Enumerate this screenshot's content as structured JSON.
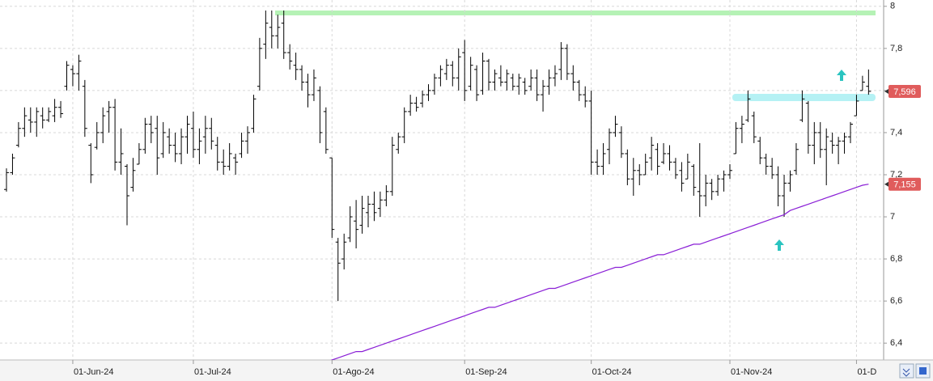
{
  "chart_data": {
    "type": "ohlc",
    "categories": [
      null,
      null,
      null,
      null,
      null,
      null,
      null,
      null,
      null,
      null,
      null,
      "01-Jun-24",
      null,
      null,
      null,
      null,
      null,
      null,
      null,
      null,
      null,
      null,
      null,
      null,
      null,
      null,
      null,
      null,
      null,
      null,
      null,
      "01-Jul-24",
      null,
      null,
      null,
      null,
      null,
      null,
      null,
      null,
      null,
      null,
      null,
      null,
      null,
      null,
      null,
      null,
      null,
      null,
      null,
      null,
      null,
      null,
      "01-Ago-24",
      null,
      null,
      null,
      null,
      null,
      null,
      null,
      null,
      null,
      null,
      null,
      null,
      null,
      null,
      null,
      null,
      null,
      null,
      null,
      null,
      null,
      "01-Sep-24",
      null,
      null,
      null,
      null,
      null,
      null,
      null,
      null,
      null,
      null,
      null,
      null,
      null,
      null,
      null,
      null,
      null,
      null,
      null,
      null,
      "01-Oct-24",
      null,
      null,
      null,
      null,
      null,
      null,
      null,
      null,
      null,
      null,
      null,
      null,
      null,
      null,
      null,
      null,
      null,
      null,
      null,
      null,
      null,
      null,
      "01-Nov-24",
      null,
      null,
      null,
      null,
      null,
      null,
      null,
      null,
      null,
      null,
      null,
      null,
      null,
      null,
      null,
      null,
      null,
      null,
      null,
      null,
      "01-D",
      null,
      null
    ],
    "open": [
      7.13,
      7.21,
      7.34,
      7.42,
      7.46,
      7.45,
      7.48,
      7.46,
      7.48,
      7.52,
      7.62,
      7.7,
      7.68,
      7.62,
      7.34,
      7.33,
      7.4,
      7.5,
      7.52,
      7.26,
      7.24,
      7.14,
      7.25,
      7.32,
      7.44,
      7.42,
      7.3,
      7.38,
      7.34,
      7.3,
      7.38,
      7.42,
      7.32,
      7.38,
      7.42,
      7.34,
      7.26,
      7.24,
      7.28,
      7.3,
      7.36,
      7.42,
      7.62,
      7.82,
      7.9,
      7.86,
      7.92,
      7.78,
      7.72,
      7.7,
      7.64,
      7.58,
      7.6,
      7.5,
      7.28,
      6.88,
      6.8,
      6.9,
      6.98,
      6.96,
      7.02,
      7.06,
      7.04,
      7.08,
      7.12,
      7.32,
      7.38,
      7.5,
      7.54,
      7.54,
      7.58,
      7.6,
      7.66,
      7.68,
      7.72,
      7.66,
      7.78,
      7.62,
      7.7,
      7.6,
      7.74,
      7.64,
      7.66,
      7.64,
      7.66,
      7.62,
      7.64,
      7.62,
      7.66,
      7.58,
      7.62,
      7.66,
      7.7,
      7.8,
      7.68,
      7.64,
      7.58,
      7.55,
      7.26,
      7.24,
      7.32,
      7.4,
      7.4,
      7.3,
      7.18,
      7.22,
      7.2,
      7.28,
      7.32,
      7.26,
      7.3,
      7.26,
      7.22,
      7.18,
      7.24,
      7.12,
      7.1,
      7.16,
      7.12,
      7.18,
      7.2,
      7.3,
      7.42,
      7.46,
      7.48,
      7.36,
      7.28,
      7.24,
      7.2,
      7.1,
      7.16,
      7.22,
      7.46,
      7.54,
      7.34,
      7.4,
      7.32,
      7.36,
      7.34,
      7.36,
      7.38,
      7.48,
      7.6,
      7.62
    ],
    "high": [
      7.23,
      7.3,
      7.45,
      7.52,
      7.52,
      7.52,
      7.52,
      7.52,
      7.56,
      7.55,
      7.74,
      7.72,
      7.77,
      7.65,
      7.35,
      7.45,
      7.52,
      7.55,
      7.56,
      7.42,
      7.25,
      7.28,
      7.35,
      7.47,
      7.48,
      7.48,
      7.45,
      7.42,
      7.4,
      7.42,
      7.48,
      7.5,
      7.42,
      7.48,
      7.47,
      7.38,
      7.32,
      7.35,
      7.3,
      7.4,
      7.43,
      7.58,
      7.85,
      7.98,
      7.98,
      7.96,
      7.98,
      7.82,
      7.78,
      7.72,
      7.68,
      7.7,
      7.62,
      7.52,
      7.28,
      6.9,
      6.92,
      7.05,
      7.08,
      7.1,
      7.1,
      7.12,
      7.12,
      7.15,
      7.38,
      7.4,
      7.52,
      7.58,
      7.57,
      7.6,
      7.63,
      7.68,
      7.72,
      7.75,
      7.74,
      7.8,
      7.84,
      7.76,
      7.72,
      7.78,
      7.75,
      7.7,
      7.72,
      7.7,
      7.68,
      7.68,
      7.66,
      7.7,
      7.7,
      7.65,
      7.7,
      7.72,
      7.83,
      7.82,
      7.72,
      7.65,
      7.62,
      7.6,
      7.32,
      7.35,
      7.42,
      7.48,
      7.43,
      7.32,
      7.28,
      7.25,
      7.3,
      7.38,
      7.35,
      7.35,
      7.34,
      7.28,
      7.26,
      7.3,
      7.25,
      7.35,
      7.2,
      7.18,
      7.2,
      7.22,
      7.25,
      7.45,
      7.48,
      7.6,
      7.5,
      7.38,
      7.3,
      7.28,
      7.24,
      7.2,
      7.22,
      7.35,
      7.6,
      7.55,
      7.45,
      7.45,
      7.42,
      7.4,
      7.38,
      7.4,
      7.45,
      7.58,
      7.67,
      7.7
    ],
    "low": [
      7.12,
      7.2,
      7.33,
      7.38,
      7.4,
      7.38,
      7.42,
      7.45,
      7.45,
      7.47,
      7.6,
      7.62,
      7.6,
      7.38,
      7.16,
      7.32,
      7.35,
      7.4,
      7.22,
      7.2,
      6.96,
      7.12,
      7.25,
      7.3,
      7.35,
      7.2,
      7.28,
      7.3,
      7.26,
      7.25,
      7.3,
      7.28,
      7.25,
      7.3,
      7.32,
      7.22,
      7.2,
      7.22,
      7.2,
      7.28,
      7.3,
      7.4,
      7.6,
      7.75,
      7.8,
      7.8,
      7.75,
      7.7,
      7.65,
      7.6,
      7.52,
      7.55,
      7.35,
      7.3,
      6.9,
      6.6,
      6.75,
      6.88,
      6.85,
      6.92,
      6.95,
      6.98,
      7.0,
      7.05,
      7.1,
      7.3,
      7.35,
      7.48,
      7.5,
      7.52,
      7.55,
      7.58,
      7.62,
      7.65,
      7.62,
      7.6,
      7.55,
      7.6,
      7.55,
      7.58,
      7.6,
      7.6,
      7.62,
      7.6,
      7.6,
      7.58,
      7.58,
      7.6,
      7.55,
      7.5,
      7.58,
      7.62,
      7.65,
      7.65,
      7.6,
      7.55,
      7.52,
      7.2,
      7.2,
      7.2,
      7.25,
      7.38,
      7.28,
      7.15,
      7.1,
      7.15,
      7.2,
      7.22,
      7.2,
      7.25,
      7.22,
      7.18,
      7.12,
      7.18,
      7.1,
      7.0,
      7.05,
      7.08,
      7.1,
      7.12,
      7.18,
      7.3,
      7.35,
      7.45,
      7.35,
      7.25,
      7.2,
      7.18,
      7.05,
      7.0,
      7.12,
      7.2,
      7.45,
      7.3,
      7.25,
      7.28,
      7.15,
      7.3,
      7.25,
      7.3,
      7.35,
      7.48,
      7.6,
      7.58
    ],
    "close": [
      7.21,
      7.28,
      7.42,
      7.48,
      7.45,
      7.5,
      7.46,
      7.5,
      7.52,
      7.49,
      7.72,
      7.68,
      7.74,
      7.42,
      7.2,
      7.4,
      7.48,
      7.52,
      7.26,
      7.3,
      7.1,
      7.22,
      7.32,
      7.44,
      7.4,
      7.28,
      7.4,
      7.34,
      7.3,
      7.38,
      7.44,
      7.32,
      7.36,
      7.42,
      7.36,
      7.26,
      7.24,
      7.3,
      7.26,
      7.36,
      7.4,
      7.56,
      7.8,
      7.92,
      7.86,
      7.9,
      7.78,
      7.74,
      7.7,
      7.64,
      7.58,
      7.66,
      7.4,
      7.32,
      6.94,
      6.78,
      6.88,
      7.0,
      6.94,
      7.04,
      7.06,
      7.02,
      7.08,
      7.12,
      7.34,
      7.38,
      7.5,
      7.54,
      7.52,
      7.58,
      7.6,
      7.66,
      7.7,
      7.72,
      7.66,
      7.76,
      7.6,
      7.72,
      7.58,
      7.74,
      7.64,
      7.68,
      7.64,
      7.68,
      7.62,
      7.66,
      7.6,
      7.66,
      7.58,
      7.62,
      7.66,
      7.68,
      7.8,
      7.68,
      7.64,
      7.58,
      7.55,
      7.26,
      7.24,
      7.3,
      7.4,
      7.44,
      7.3,
      7.18,
      7.22,
      7.2,
      7.26,
      7.34,
      7.24,
      7.3,
      7.26,
      7.2,
      7.16,
      7.26,
      7.14,
      7.1,
      7.16,
      7.12,
      7.18,
      7.2,
      7.22,
      7.42,
      7.44,
      7.56,
      7.38,
      7.28,
      7.24,
      7.2,
      7.1,
      7.16,
      7.2,
      7.32,
      7.56,
      7.34,
      7.4,
      7.32,
      7.38,
      7.34,
      7.36,
      7.38,
      7.44,
      7.55,
      7.64,
      7.596
    ],
    "color": "#000000",
    "last_label": "7,596",
    "label_color": "#e05c5c",
    "ma": {
      "color": "#8a1fd6",
      "last_label": "7,155",
      "values": [
        null,
        null,
        null,
        null,
        null,
        null,
        null,
        null,
        null,
        null,
        null,
        null,
        null,
        null,
        null,
        null,
        null,
        null,
        null,
        null,
        null,
        null,
        null,
        null,
        null,
        null,
        null,
        null,
        null,
        null,
        null,
        null,
        null,
        null,
        null,
        null,
        null,
        null,
        null,
        null,
        null,
        null,
        null,
        null,
        null,
        null,
        null,
        null,
        null,
        null,
        null,
        null,
        null,
        6.31,
        6.32,
        6.33,
        6.34,
        6.35,
        6.36,
        6.36,
        6.37,
        6.38,
        6.39,
        6.4,
        6.41,
        6.42,
        6.43,
        6.44,
        6.45,
        6.46,
        6.47,
        6.48,
        6.49,
        6.5,
        6.51,
        6.52,
        6.53,
        6.54,
        6.55,
        6.56,
        6.57,
        6.57,
        6.58,
        6.59,
        6.6,
        6.61,
        6.62,
        6.63,
        6.64,
        6.65,
        6.66,
        6.66,
        6.67,
        6.68,
        6.69,
        6.7,
        6.71,
        6.72,
        6.73,
        6.74,
        6.75,
        6.76,
        6.76,
        6.77,
        6.78,
        6.79,
        6.8,
        6.81,
        6.82,
        6.82,
        6.83,
        6.84,
        6.85,
        6.86,
        6.87,
        6.87,
        6.88,
        6.89,
        6.9,
        6.91,
        6.92,
        6.93,
        6.94,
        6.95,
        6.96,
        6.97,
        6.98,
        6.99,
        7.0,
        7.01,
        7.03,
        7.04,
        7.05,
        7.06,
        7.07,
        7.08,
        7.09,
        7.1,
        7.11,
        7.12,
        7.13,
        7.14,
        7.15,
        7.155
      ]
    },
    "ylim": [
      6.32,
      8.03
    ],
    "yticks": [
      {
        "value": 6.4,
        "label": "6,4"
      },
      {
        "value": 6.6,
        "label": "6,6"
      },
      {
        "value": 6.8,
        "label": "6,8"
      },
      7,
      {
        "value": 7.2,
        "label": "7,2"
      },
      {
        "value": 7.4,
        "label": "7,4"
      },
      {
        "value": 7.6,
        "label": "7,6"
      },
      {
        "value": 7.8,
        "label": "7,8"
      },
      8
    ],
    "grid": true
  }
}
